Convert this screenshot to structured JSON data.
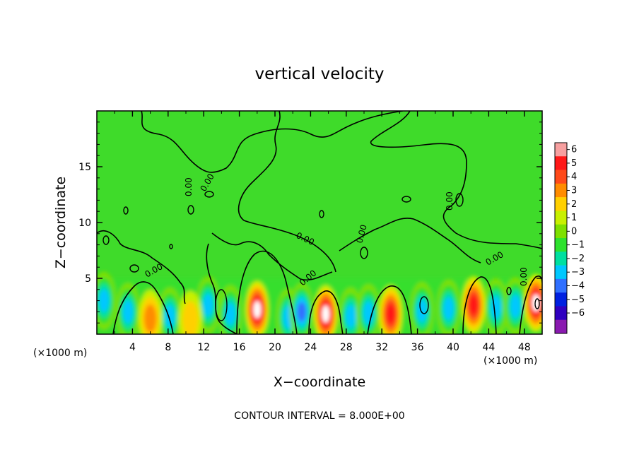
{
  "chart_data": {
    "type": "heatmap",
    "title": "vertical velocity",
    "xlabel": "X−coordinate",
    "ylabel": "Z−coordinate",
    "x_unit": "(×1000 m)",
    "y_unit": "(×1000 m)",
    "xlim": [
      0,
      50
    ],
    "ylim": [
      0,
      20
    ],
    "x_ticks": [
      4,
      8,
      12,
      16,
      20,
      24,
      28,
      32,
      36,
      40,
      44,
      48
    ],
    "y_ticks": [
      5,
      10,
      15
    ],
    "colorbar": {
      "levels": [
        6,
        5,
        4,
        3,
        2,
        1,
        0,
        -1,
        -2,
        -3,
        -4,
        -5,
        -6
      ],
      "colors": [
        "#f7a0a0",
        "#ff1818",
        "#ff4a1a",
        "#ff8c00",
        "#ffd000",
        "#c8f000",
        "#7ee000",
        "#2ee22e",
        "#00e0a0",
        "#00c8ff",
        "#3070ff",
        "#0020e0",
        "#3000c0",
        "#8a1ab0"
      ]
    },
    "background_color": "#3fdb2a",
    "contour_label": "0.00",
    "note": "CONTOUR INTERVAL = 8.000E+00",
    "updrafts": [
      {
        "x": 6,
        "z": 1.4,
        "peak": 3
      },
      {
        "x": 10.5,
        "z": 1.3,
        "peak": 2
      },
      {
        "x": 18,
        "z": 2.2,
        "peak": 6
      },
      {
        "x": 25.7,
        "z": 1.8,
        "peak": 6
      },
      {
        "x": 33,
        "z": 1.8,
        "peak": 5
      },
      {
        "x": 42.3,
        "z": 2.6,
        "peak": 5
      },
      {
        "x": 49.3,
        "z": 2.8,
        "peak": 6
      }
    ],
    "downdrafts": [
      {
        "x": 0.8,
        "z": 3,
        "peak": -4
      },
      {
        "x": 3.5,
        "z": 2,
        "peak": -4
      },
      {
        "x": 8.2,
        "z": 1.6,
        "peak": -4
      },
      {
        "x": 12.5,
        "z": 2.6,
        "peak": -4
      },
      {
        "x": 15,
        "z": 1.8,
        "peak": -4
      },
      {
        "x": 21.5,
        "z": 1.5,
        "peak": -4
      },
      {
        "x": 23,
        "z": 2,
        "peak": -5
      },
      {
        "x": 28.5,
        "z": 1.6,
        "peak": -4
      },
      {
        "x": 30.5,
        "z": 1.9,
        "peak": -4
      },
      {
        "x": 36.5,
        "z": 2.1,
        "peak": -4
      },
      {
        "x": 39.5,
        "z": 2.3,
        "peak": -4
      },
      {
        "x": 44.8,
        "z": 2.4,
        "peak": -4
      },
      {
        "x": 47,
        "z": 2.5,
        "peak": -4
      }
    ]
  }
}
